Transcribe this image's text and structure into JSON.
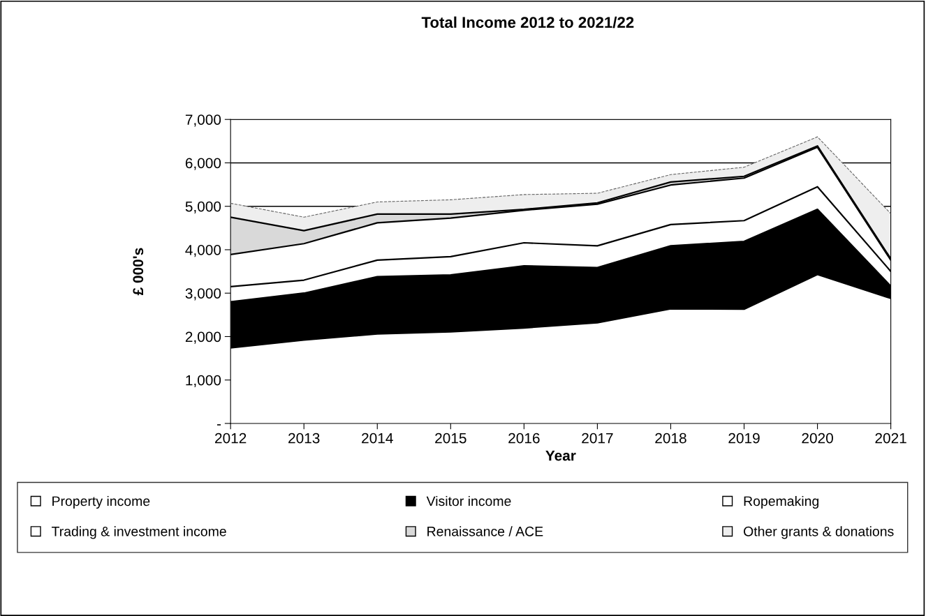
{
  "chart_data": {
    "type": "area",
    "stacked": true,
    "title": "Total Income 2012 to 2021/22",
    "xlabel": "Year",
    "ylabel": "£ 000's",
    "categories": [
      "2012",
      "2013",
      "2014",
      "2015",
      "2016",
      "2017",
      "2018",
      "2019",
      "2020",
      "2021"
    ],
    "series": [
      {
        "name": "Property income",
        "color": "#ffffff",
        "values": [
          1740,
          1920,
          2060,
          2110,
          2200,
          2320,
          2640,
          2630,
          3430,
          2880
        ]
      },
      {
        "name": "Visitor income",
        "color": "#000000",
        "values": [
          1060,
          1080,
          1320,
          1310,
          1430,
          1270,
          1450,
          1560,
          1500,
          280
        ]
      },
      {
        "name": "Ropemaking",
        "color": "#ffffff",
        "values": [
          350,
          300,
          380,
          420,
          530,
          500,
          490,
          480,
          520,
          340
        ]
      },
      {
        "name": "Trading & investment income",
        "color": "#ffffff",
        "values": [
          740,
          840,
          860,
          890,
          750,
          960,
          910,
          980,
          910,
          260
        ]
      },
      {
        "name": "Renaissance / ACE",
        "color": "#d9d9d9",
        "values": [
          860,
          300,
          200,
          90,
          20,
          30,
          70,
          40,
          30,
          30
        ]
      },
      {
        "name": "Other grants & donations",
        "color": "#eeeeee",
        "line_style": "dashed",
        "values": [
          320,
          310,
          280,
          330,
          340,
          220,
          170,
          210,
          210,
          1040
        ]
      }
    ],
    "ylim": [
      0,
      7000
    ],
    "yticks": [
      {
        "value": 0,
        "label": "-"
      },
      {
        "value": 1000,
        "label": "1,000"
      },
      {
        "value": 2000,
        "label": "2,000"
      },
      {
        "value": 3000,
        "label": "3,000"
      },
      {
        "value": 4000,
        "label": "4,000"
      },
      {
        "value": 5000,
        "label": "5,000"
      },
      {
        "value": 6000,
        "label": "6,000"
      },
      {
        "value": 7000,
        "label": "7,000"
      }
    ],
    "grid": "y",
    "legend": "bottom"
  }
}
